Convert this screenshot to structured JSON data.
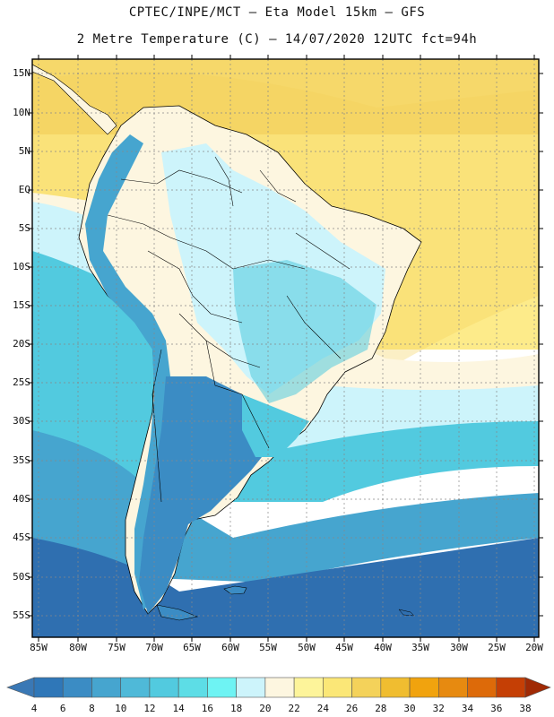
{
  "title_line1": "CPTEC/INPE/MCT –  Eta Model 15km – GFS",
  "title_line2": "2 Metre Temperature (C) – 14/07/2020 12UTC fct=94h",
  "lat_labels": [
    "15N",
    "10N",
    "5N",
    "EQ",
    "5S",
    "10S",
    "15S",
    "20S",
    "25S",
    "30S",
    "35S",
    "40S",
    "45S",
    "50S",
    "55S"
  ],
  "lon_labels": [
    "85W",
    "80W",
    "75W",
    "70W",
    "65W",
    "60W",
    "55W",
    "50W",
    "45W",
    "40W",
    "35W",
    "30W",
    "25W",
    "20W"
  ],
  "colorbar": {
    "labels": [
      "4",
      "6",
      "8",
      "10",
      "12",
      "14",
      "16",
      "18",
      "20",
      "22",
      "24",
      "26",
      "28",
      "30",
      "32",
      "34",
      "36",
      "38"
    ],
    "colors": [
      "#3a78b5",
      "#2f77b8",
      "#3b8cc4",
      "#46a5cf",
      "#4fb9d8",
      "#52cadf",
      "#5ddde6",
      "#6ef3f3",
      "#cdf4fb",
      "#fdf6e0",
      "#fdf49a",
      "#fbe777",
      "#f4d25a",
      "#f0bd30",
      "#f1a30e",
      "#e78a10",
      "#dd6a09",
      "#c53f05",
      "#a02a05"
    ]
  },
  "map": {
    "ocean_colors": {
      "tropical": "#f6d86a",
      "warm": "#fdeb8a",
      "mild": "#cdf4fb",
      "cool": "#52cadf",
      "cold": "#3b8cc4",
      "colder": "#2f6fb0"
    },
    "land_colors": {
      "hot": "#fdf6e0",
      "warm": "#cdf4fb",
      "andes": "#46a5cf",
      "south": "#3b8cc4"
    }
  }
}
